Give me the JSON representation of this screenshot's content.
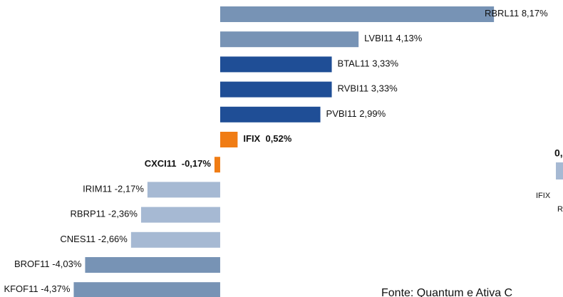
{
  "chart_data": {
    "type": "barh",
    "categories": [
      "RBRL11",
      "LVBI11",
      "BTAL11",
      "RVBI11",
      "PVBI11",
      "IFIX",
      "CXCI11",
      "IRIM11",
      "RBRP11",
      "CNES11",
      "BROF11",
      "KFOF11"
    ],
    "values": [
      8.17,
      4.13,
      3.33,
      3.33,
      2.99,
      0.52,
      -0.17,
      -2.17,
      -2.36,
      -2.66,
      -4.03,
      -4.37
    ],
    "value_labels": [
      "8,17%",
      "4,13%",
      "3,33%",
      "3,33%",
      "2,99%",
      "0,52%",
      "-0,17%",
      "-2,17%",
      "-2,36%",
      "-2,66%",
      "-4,03%",
      "-4,37%"
    ],
    "colors": [
      "#7793b5",
      "#7793b5",
      "#1f4e96",
      "#1f4e96",
      "#1f4e96",
      "#f07c14",
      "#f07c14",
      "#a6b9d3",
      "#a6b9d3",
      "#a6b9d3",
      "#7793b5",
      "#7793b5"
    ],
    "highlight_color": "#f07c14",
    "xlim": [
      -6.57,
      10.23
    ],
    "annotations": [
      "0,",
      "IFIX",
      "R"
    ],
    "source": "Fonte: Quantum e Ativa C"
  }
}
